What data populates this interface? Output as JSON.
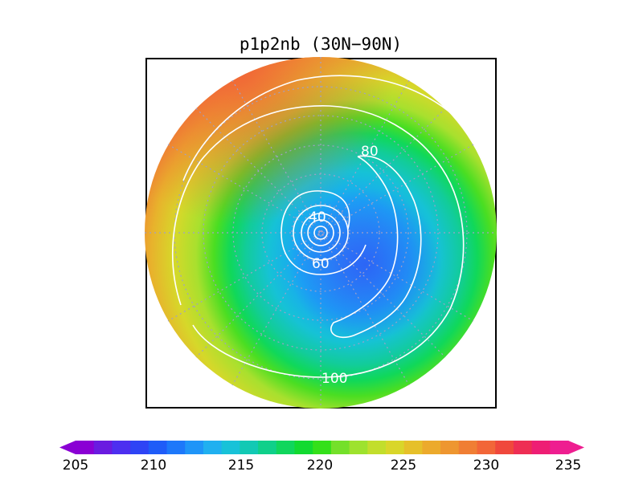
{
  "title": "p1p2nb (30N−90N)",
  "colorbar": {
    "ticks": [
      "205",
      "210",
      "215",
      "220",
      "225",
      "230",
      "235"
    ],
    "colors": [
      "#8a00d4",
      "#6a1be0",
      "#4d2ff0",
      "#2e44f5",
      "#1f5cf8",
      "#1d78fa",
      "#1f95f8",
      "#20b0f0",
      "#18c2d8",
      "#12c9b4",
      "#0fd08a",
      "#10d65c",
      "#12da30",
      "#34e01a",
      "#74e02a",
      "#9ee22e",
      "#c2de2c",
      "#d9d62a",
      "#e6c02a",
      "#ecaa2c",
      "#ee9630",
      "#f07e34",
      "#f26638",
      "#f0483c",
      "#ee2e54",
      "#ee1e74",
      "#ee1e90"
    ]
  },
  "contour_labels": [
    "40",
    "60",
    "80",
    "100"
  ]
}
